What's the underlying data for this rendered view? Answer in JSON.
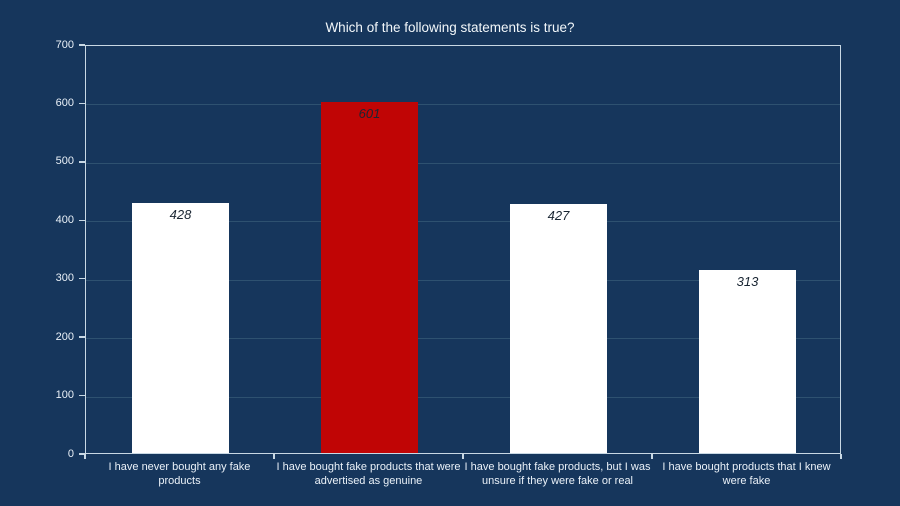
{
  "title": "Which of the following statements is true?",
  "colors": {
    "background": "#16365C",
    "plot_border": "#C8D8E4",
    "gridline": "#2E5170",
    "axis_text": "#EAF1F8",
    "title_text": "#F2F7FA",
    "data_label": "#1A2633",
    "bar_default": "#FFFFFF",
    "bar_highlight": "#C00505"
  },
  "chart_data": {
    "type": "bar",
    "title": "Which of the following statements is true?",
    "categories": [
      "I have never bought any fake products",
      "I have bought fake products that were advertised as genuine",
      "I have bought fake products, but I was unsure if they were fake or real",
      "I have bought products that I knew were fake"
    ],
    "values": [
      428,
      601,
      427,
      313
    ],
    "bar_colors": [
      "#FFFFFF",
      "#C00505",
      "#FFFFFF",
      "#FFFFFF"
    ],
    "data_labels": [
      428,
      601,
      427,
      313
    ],
    "data_label_position": "inside-end",
    "xlabel": "",
    "ylabel": "",
    "ylim": [
      0,
      700
    ],
    "yticks": [
      0,
      100,
      200,
      300,
      400,
      500,
      600,
      700
    ],
    "grid": "horizontal-major",
    "legend": false
  }
}
